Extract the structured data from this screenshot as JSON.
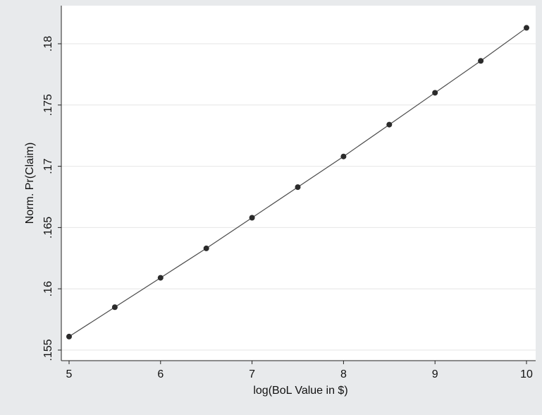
{
  "chart_data": {
    "type": "line",
    "title": "",
    "xlabel": "log(BoL Value in $)",
    "ylabel": "Norm. Pr(Claim)",
    "xlim": [
      5,
      10
    ],
    "ylim": [
      0.155,
      0.18
    ],
    "xticks": [
      5,
      6,
      7,
      8,
      9,
      10
    ],
    "xtick_labels": [
      "5",
      "6",
      "7",
      "8",
      "9",
      "10"
    ],
    "yticks": [
      0.155,
      0.16,
      0.165,
      0.17,
      0.175,
      0.18
    ],
    "ytick_labels": [
      ".155",
      ".16",
      ".165",
      ".17",
      ".175",
      ".18"
    ],
    "grid": "horizontal",
    "legend": "none",
    "series": [
      {
        "x": [
          5,
          5.5,
          6,
          6.5,
          7,
          7.5,
          8,
          8.5,
          9,
          9.5,
          10
        ],
        "y": [
          0.1561,
          0.1585,
          0.1609,
          0.1633,
          0.1658,
          0.1683,
          0.1708,
          0.1734,
          0.176,
          0.1786,
          0.1813
        ],
        "marker": "circle",
        "line": "connected"
      }
    ],
    "colors": {
      "background": "#e8eaec",
      "plot_background": "#ffffff",
      "gridline": "#e6e6e6",
      "line": "#4a4a4a",
      "marker": "#2b2b2b"
    }
  }
}
